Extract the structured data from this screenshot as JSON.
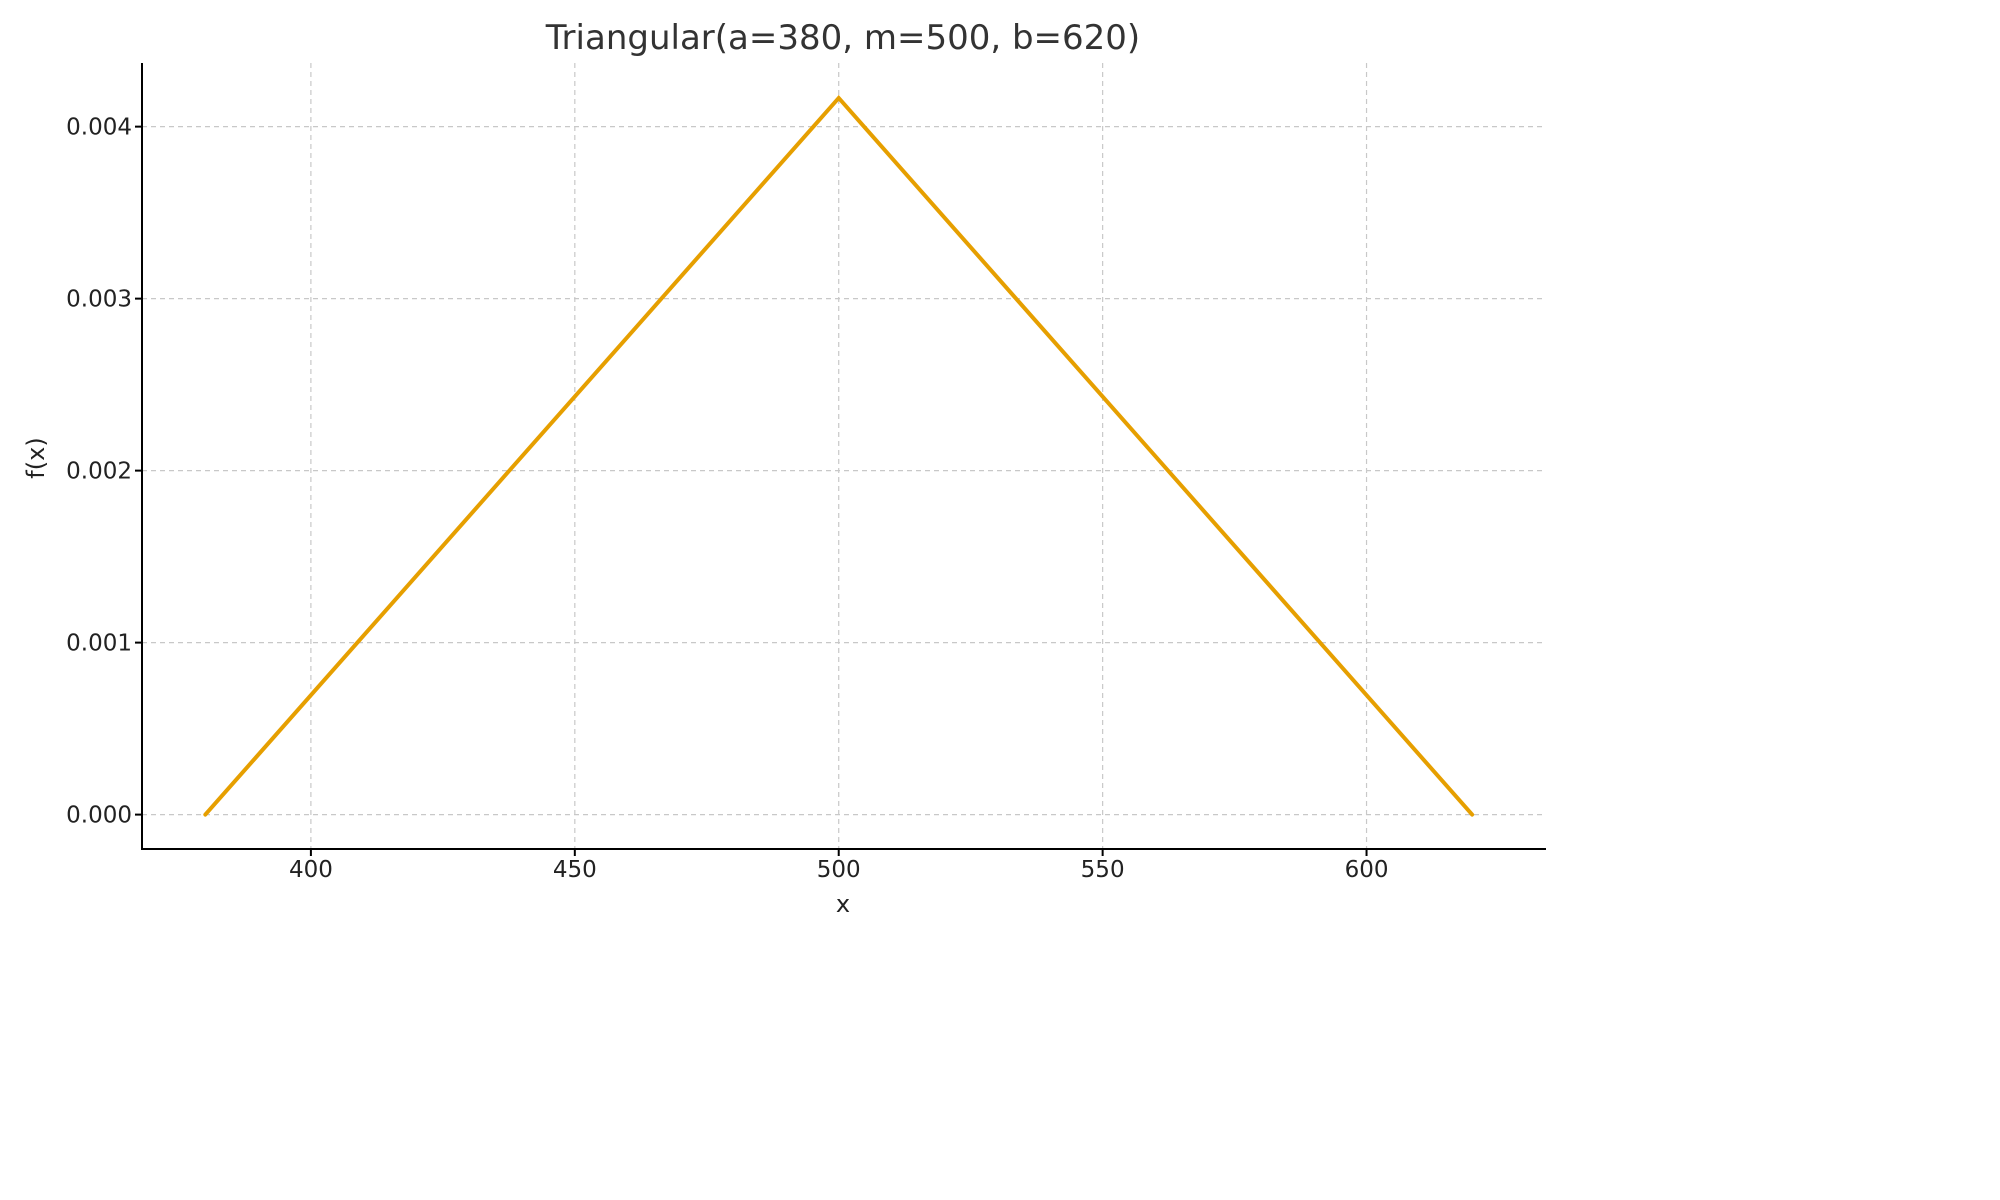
{
  "chart_data": {
    "type": "line",
    "title": "Triangular(a=380, m=500, b=620)",
    "xlabel": "x",
    "ylabel": "f(x)",
    "xlim": [
      368,
      634
    ],
    "ylim": [
      -0.0002,
      0.00437
    ],
    "xticks": [
      400,
      450,
      500,
      550,
      600
    ],
    "xtick_labels": [
      "400",
      "450",
      "500",
      "550",
      "600"
    ],
    "yticks": [
      0.0,
      0.001,
      0.002,
      0.003,
      0.004
    ],
    "ytick_labels": [
      "0.000",
      "0.001",
      "0.002",
      "0.003",
      "0.004"
    ],
    "grid": true,
    "series": [
      {
        "color": "#E69F00",
        "x": [
          380,
          500,
          620
        ],
        "y": [
          0.0,
          0.0041667,
          0.0
        ]
      }
    ]
  }
}
